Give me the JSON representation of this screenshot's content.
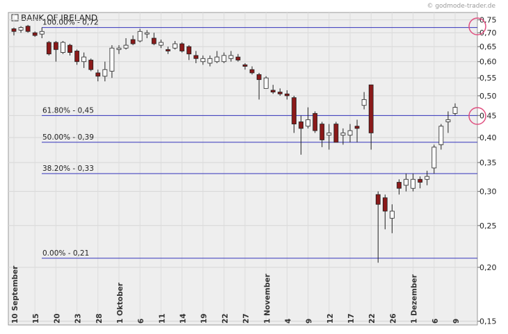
{
  "chart_data": {
    "type": "candlestick",
    "title": "BANK OF IRELAND",
    "source": "© godmode-trader.de",
    "categories": [
      "10 September",
      null,
      null,
      "15",
      null,
      null,
      "20",
      null,
      null,
      "23",
      null,
      null,
      "28",
      null,
      null,
      "1 Oktober",
      null,
      null,
      "6",
      null,
      null,
      "11",
      null,
      null,
      "14",
      null,
      null,
      "19",
      null,
      null,
      "22",
      null,
      null,
      "27",
      null,
      null,
      "1 November",
      null,
      null,
      "4",
      null,
      null,
      "9",
      null,
      null,
      "12",
      null,
      null,
      "17",
      null,
      null,
      "22",
      null,
      null,
      "26",
      null,
      null,
      "1 Dezember",
      null,
      null,
      "6",
      null,
      null,
      "9"
    ],
    "open": [
      0.715,
      0.71,
      0.725,
      0.7,
      0.695,
      0.665,
      0.665,
      0.63,
      0.655,
      0.635,
      0.6,
      0.605,
      0.565,
      0.555,
      0.57,
      0.64,
      0.645,
      0.675,
      0.67,
      0.695,
      0.68,
      0.655,
      0.64,
      0.645,
      0.66,
      0.65,
      0.62,
      0.6,
      0.595,
      0.6,
      0.6,
      0.61,
      0.615,
      0.59,
      0.575,
      0.56,
      0.52,
      0.515,
      0.51,
      0.505,
      0.495,
      0.435,
      0.425,
      0.455,
      0.43,
      0.405,
      0.43,
      0.405,
      0.405,
      0.425,
      0.475,
      0.53,
      0.295,
      0.29,
      0.26,
      0.315,
      0.31,
      0.305,
      0.32,
      0.32,
      0.34,
      0.385,
      0.435,
      0.455
    ],
    "high": [
      0.72,
      0.725,
      0.73,
      0.705,
      0.72,
      0.67,
      0.67,
      0.67,
      0.66,
      0.64,
      0.63,
      0.61,
      0.575,
      0.6,
      0.655,
      0.655,
      0.68,
      0.69,
      0.715,
      0.71,
      0.7,
      0.675,
      0.65,
      0.67,
      0.665,
      0.655,
      0.635,
      0.62,
      0.62,
      0.635,
      0.63,
      0.635,
      0.625,
      0.595,
      0.585,
      0.565,
      0.555,
      0.53,
      0.52,
      0.515,
      0.5,
      0.45,
      0.47,
      0.46,
      0.435,
      0.43,
      0.435,
      0.42,
      0.43,
      0.44,
      0.51,
      0.53,
      0.3,
      0.295,
      0.28,
      0.32,
      0.33,
      0.33,
      0.325,
      0.335,
      0.385,
      0.43,
      0.46,
      0.48
    ],
    "low": [
      0.69,
      0.7,
      0.7,
      0.685,
      0.68,
      0.62,
      0.6,
      0.625,
      0.62,
      0.59,
      0.58,
      0.57,
      0.54,
      0.54,
      0.55,
      0.625,
      0.64,
      0.655,
      0.665,
      0.68,
      0.655,
      0.645,
      0.625,
      0.64,
      0.63,
      0.605,
      0.595,
      0.59,
      0.585,
      0.595,
      0.595,
      0.6,
      0.6,
      0.575,
      0.56,
      0.49,
      0.52,
      0.505,
      0.5,
      0.49,
      0.41,
      0.365,
      0.42,
      0.41,
      0.38,
      0.375,
      0.39,
      0.385,
      0.39,
      0.39,
      0.465,
      0.375,
      0.205,
      0.245,
      0.24,
      0.295,
      0.3,
      0.3,
      0.305,
      0.31,
      0.33,
      0.375,
      0.41,
      0.45
    ],
    "close": [
      0.705,
      0.72,
      0.705,
      0.69,
      0.705,
      0.625,
      0.64,
      0.665,
      0.63,
      0.6,
      0.615,
      0.575,
      0.555,
      0.575,
      0.645,
      0.645,
      0.655,
      0.66,
      0.705,
      0.7,
      0.66,
      0.665,
      0.635,
      0.66,
      0.635,
      0.625,
      0.61,
      0.61,
      0.61,
      0.615,
      0.62,
      0.62,
      0.605,
      0.585,
      0.565,
      0.545,
      0.55,
      0.51,
      0.505,
      0.5,
      0.43,
      0.42,
      0.44,
      0.415,
      0.395,
      0.41,
      0.39,
      0.41,
      0.415,
      0.42,
      0.49,
      0.41,
      0.28,
      0.27,
      0.27,
      0.305,
      0.32,
      0.32,
      0.315,
      0.325,
      0.38,
      0.425,
      0.44,
      0.47
    ],
    "up_color": "#ffffff",
    "down_color": "#8b1a1a",
    "levels": [
      {
        "label": "100.00% - 0,72",
        "value": 0.72
      },
      {
        "label": "61.80% - 0,45",
        "value": 0.45
      },
      {
        "label": "50.00% - 0,39",
        "value": 0.39
      },
      {
        "label": "38.20% - 0,33",
        "value": 0.33
      },
      {
        "label": "0.00% - 0,21",
        "value": 0.21
      }
    ],
    "level_color": "#3333bb",
    "ylim": [
      0.147,
      0.78
    ],
    "log_scale": true,
    "yticks": [
      {
        "value": 0.75,
        "label": "0,75"
      },
      {
        "value": 0.7,
        "label": "0,70"
      },
      {
        "value": 0.65,
        "label": "0,65"
      },
      {
        "value": 0.6,
        "label": "0,60"
      },
      {
        "value": 0.55,
        "label": "0,55"
      },
      {
        "value": 0.5,
        "label": "0,50"
      },
      {
        "value": 0.45,
        "label": "0,45"
      },
      {
        "value": 0.4,
        "label": "0,40"
      },
      {
        "value": 0.35,
        "label": "0,35"
      },
      {
        "value": 0.3,
        "label": "0,30"
      },
      {
        "value": 0.25,
        "label": "0,25"
      },
      {
        "value": 0.2,
        "label": "0,20"
      },
      {
        "value": 0.15,
        "label": "0,15"
      }
    ],
    "grid": true
  }
}
